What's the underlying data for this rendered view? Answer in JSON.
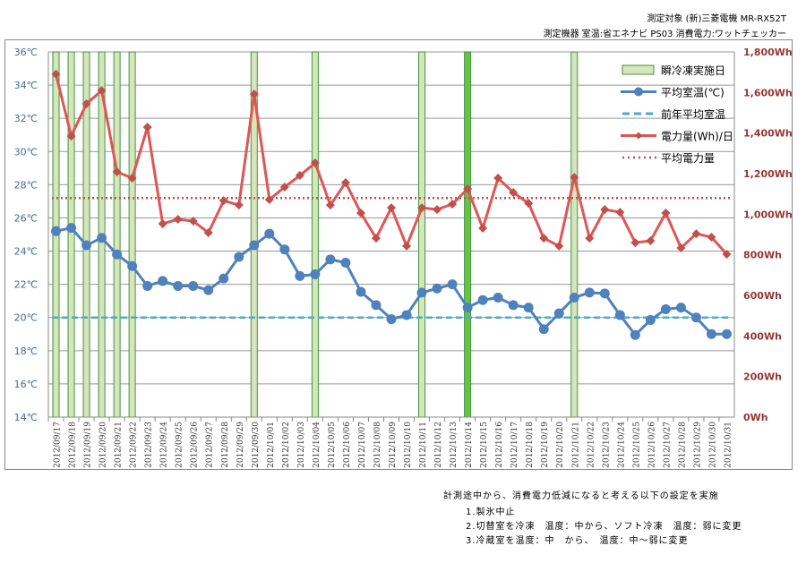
{
  "header": {
    "line1": "測定対象 (新)三菱電機 MR-RX52T",
    "line2": "測定機器 室温:省エネナビ PS03 消費電力:ワットチェッカー"
  },
  "footer": {
    "intro": "計測途中から、消費電力低減になると考える以下の設定を実施",
    "items": [
      "1.製氷中止",
      "2.切替室を冷凍　温度：中から、ソフト冷凍　温度：弱に変更",
      "3.冷蔵室を温度：中　から、　温度：中～弱に変更"
    ]
  },
  "chart_data": {
    "type": "line",
    "categories": [
      "2012/09/17",
      "2012/09/18",
      "2012/09/19",
      "2012/09/20",
      "2012/09/21",
      "2012/09/22",
      "2012/09/23",
      "2012/09/24",
      "2012/09/25",
      "2012/09/26",
      "2012/09/27",
      "2012/09/28",
      "2012/09/29",
      "2012/09/30",
      "2012/10/01",
      "2012/10/02",
      "2012/10/03",
      "2012/10/04",
      "2012/10/05",
      "2012/10/06",
      "2012/10/07",
      "2012/10/08",
      "2012/10/09",
      "2012/10/10",
      "2012/10/11",
      "2012/10/12",
      "2012/10/13",
      "2012/10/14",
      "2012/10/15",
      "2012/10/16",
      "2012/10/17",
      "2012/10/18",
      "2012/10/19",
      "2012/10/20",
      "2012/10/21",
      "2012/10/22",
      "2012/10/23",
      "2012/10/24",
      "2012/10/25",
      "2012/10/26",
      "2012/10/27",
      "2012/10/28",
      "2012/10/29",
      "2012/10/30",
      "2012/10/31"
    ],
    "y_left": {
      "ylim": [
        14,
        36
      ],
      "ticks": [
        "14℃",
        "16℃",
        "18℃",
        "20℃",
        "22℃",
        "24℃",
        "26℃",
        "28℃",
        "30℃",
        "32℃",
        "34℃",
        "36℃"
      ]
    },
    "y_right": {
      "ylim": [
        0,
        1800
      ],
      "ticks": [
        "0Wh",
        "200Wh",
        "400Wh",
        "600Wh",
        "800Wh",
        "1,000Wh",
        "1,200Wh",
        "1,400Wh",
        "1,600Wh",
        "1,800Wh"
      ]
    },
    "grid": true,
    "legend_position": "top-right",
    "series": [
      {
        "name": "瞬冷凍実施日",
        "kind": "bar",
        "color": "#d7e4bc",
        "edge": "#3a9a3a",
        "days": [
          "2012/09/17",
          "2012/09/18",
          "2012/09/19",
          "2012/09/20",
          "2012/09/21",
          "2012/09/22",
          "2012/09/30",
          "2012/10/04",
          "2012/10/11",
          "2012/10/14",
          "2012/10/21"
        ],
        "highlight_day": "2012/10/14",
        "highlight_color": "#6cbf4a"
      },
      {
        "name": "平均室温(℃)",
        "axis": "left",
        "color": "#4f81bd",
        "marker": "circle",
        "values": [
          25.2,
          25.4,
          24.35,
          24.8,
          23.8,
          23.1,
          21.9,
          22.2,
          21.9,
          21.9,
          21.65,
          22.35,
          23.65,
          24.35,
          25.05,
          24.1,
          22.5,
          22.6,
          23.5,
          23.3,
          21.55,
          20.75,
          19.9,
          20.15,
          21.5,
          21.75,
          22.0,
          20.6,
          21.05,
          21.2,
          20.75,
          20.6,
          19.3,
          20.25,
          21.2,
          21.5,
          21.45,
          20.15,
          18.95,
          19.85,
          20.5,
          20.6,
          20.0,
          19.0,
          19.0
        ]
      },
      {
        "name": "前年平均室温",
        "axis": "left",
        "color": "#4bacc6",
        "style": "dashed",
        "value": 20.0
      },
      {
        "name": "電力量(Wh)/日",
        "axis": "right",
        "color": "#e05555",
        "marker": "diamond",
        "values": [
          1690,
          1385,
          1544,
          1610,
          1209,
          1178,
          1429,
          953,
          975,
          966,
          909,
          1067,
          1045,
          1592,
          1072,
          1134,
          1191,
          1253,
          1045,
          1156,
          1006,
          882,
          1032,
          843,
          1032,
          1023,
          1050,
          1125,
          931,
          1178,
          1107,
          1054,
          882,
          843,
          1182,
          882,
          1023,
          1010,
          860,
          869,
          1006,
          834,
          904,
          887,
          803
        ]
      },
      {
        "name": "平均電力量",
        "axis": "right",
        "color": "#c0504d",
        "style": "dotted",
        "value": 1080
      }
    ]
  }
}
